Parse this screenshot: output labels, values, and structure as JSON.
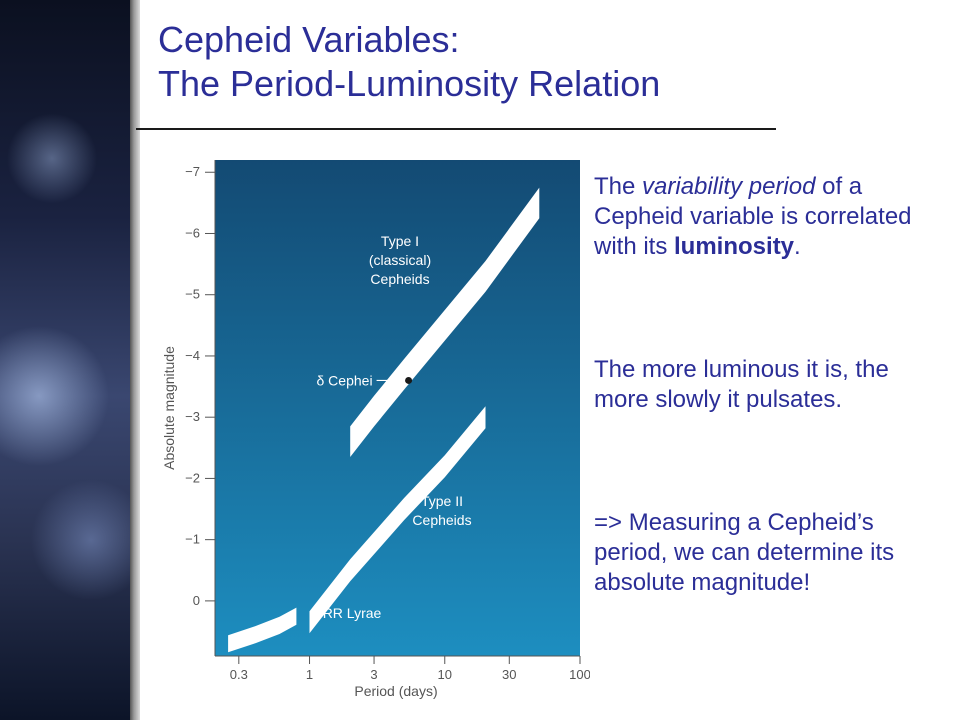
{
  "title": {
    "line1": "Cepheid Variables:",
    "line2": "The Period-Luminosity Relation"
  },
  "text": {
    "block1": {
      "p1": "The ",
      "p2": "variability period",
      "p3": " of a Cepheid variable is correlated with its ",
      "p4": "luminosity",
      "p5": "."
    },
    "block2": "The more luminous it is, the more slowly it pulsates.",
    "block3": "=> Measuring a Cepheid’s period, we can determine its absolute magnitude!"
  },
  "chart_data": {
    "type": "line",
    "xlabel": "Period (days)",
    "ylabel": "Absolute magnitude",
    "x_scale": "log",
    "xlim": [
      0.2,
      100
    ],
    "ylim": [
      0.9,
      -7.2
    ],
    "x_ticks": [
      {
        "value": 0.3,
        "label": "0.3"
      },
      {
        "value": 1,
        "label": "1"
      },
      {
        "value": 3,
        "label": "3"
      },
      {
        "value": 10,
        "label": "10"
      },
      {
        "value": 30,
        "label": "30"
      },
      {
        "value": 100,
        "label": "100"
      }
    ],
    "y_ticks": [
      {
        "value": -7,
        "label": "−7"
      },
      {
        "value": -6,
        "label": "−6"
      },
      {
        "value": -5,
        "label": "−5"
      },
      {
        "value": -4,
        "label": "−4"
      },
      {
        "value": -3,
        "label": "−3"
      },
      {
        "value": -2,
        "label": "−2"
      },
      {
        "value": -1,
        "label": "−1"
      },
      {
        "value": 0,
        "label": "0"
      }
    ],
    "series": [
      {
        "name": "Type I (classical) Cepheids",
        "label_lines": [
          "Type I",
          "(classical)",
          "Cepheids"
        ],
        "x": [
          2,
          3,
          5,
          10,
          20,
          50
        ],
        "y": [
          -2.6,
          -3.1,
          -3.7,
          -4.5,
          -5.3,
          -6.5
        ],
        "width_mag": 0.25
      },
      {
        "name": "Type II Cepheids",
        "label_lines": [
          "Type II",
          "Cepheids"
        ],
        "x": [
          1,
          2,
          5,
          10,
          20
        ],
        "y": [
          0.35,
          -0.5,
          -1.5,
          -2.2,
          -3.0
        ],
        "width_mag": 0.18
      },
      {
        "name": "RR Lyrae",
        "label_lines": [
          "RR Lyrae"
        ],
        "x": [
          0.25,
          0.4,
          0.6,
          0.8
        ],
        "y": [
          0.7,
          0.55,
          0.4,
          0.25
        ],
        "width_mag": 0.14
      }
    ],
    "annotations": [
      {
        "label": "δ Cephei",
        "x": 5.4,
        "y": -3.6
      }
    ],
    "colors": {
      "plot_bg_top": "#134a73",
      "plot_bg_bottom": "#1d8ec0",
      "band": "#ffffff",
      "tick": "#555555"
    }
  }
}
